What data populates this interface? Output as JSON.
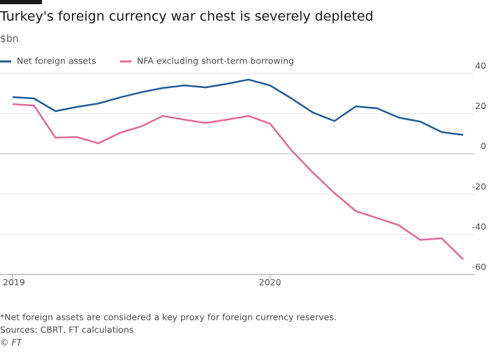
{
  "chart_data": {
    "type": "line",
    "title": "Turkey's foreign currency war chest is severely depleted",
    "subtitle": "$bn",
    "categories": [
      "2019",
      null,
      null,
      null,
      null,
      null,
      null,
      null,
      null,
      null,
      null,
      null,
      "2020",
      null,
      null,
      null,
      null,
      null,
      null,
      null,
      null,
      null
    ],
    "series": [
      {
        "name": "Net foreign assets",
        "color": "#1f5c99",
        "values": [
          28.2,
          27.5,
          21.2,
          23.3,
          25,
          28,
          30.6,
          32.7,
          34,
          33,
          34.8,
          36.9,
          34,
          27.5,
          20.5,
          16.3,
          23.6,
          22.6,
          18,
          16,
          10.8,
          9.4
        ]
      },
      {
        "name": "NFA excluding short-term borrowing",
        "color": "#e3679a",
        "values": [
          24.7,
          24,
          8,
          8.3,
          5.2,
          10.4,
          13.6,
          18.8,
          17,
          15.3,
          17,
          18.8,
          15,
          1.7,
          -9.4,
          -19.5,
          -28.5,
          -32,
          -35.5,
          -42.8,
          -42,
          -52.5
        ]
      }
    ],
    "ylim": [
      -60,
      40
    ],
    "yticks": [
      40,
      20,
      0,
      -20,
      -40,
      -60
    ],
    "grid": true,
    "legend": "top-left",
    "notes": [
      "*Net foreign assets are considered a key proxy for foreign currency reserves.",
      "Sources: CBRT, FT calculations",
      "© FT"
    ]
  }
}
